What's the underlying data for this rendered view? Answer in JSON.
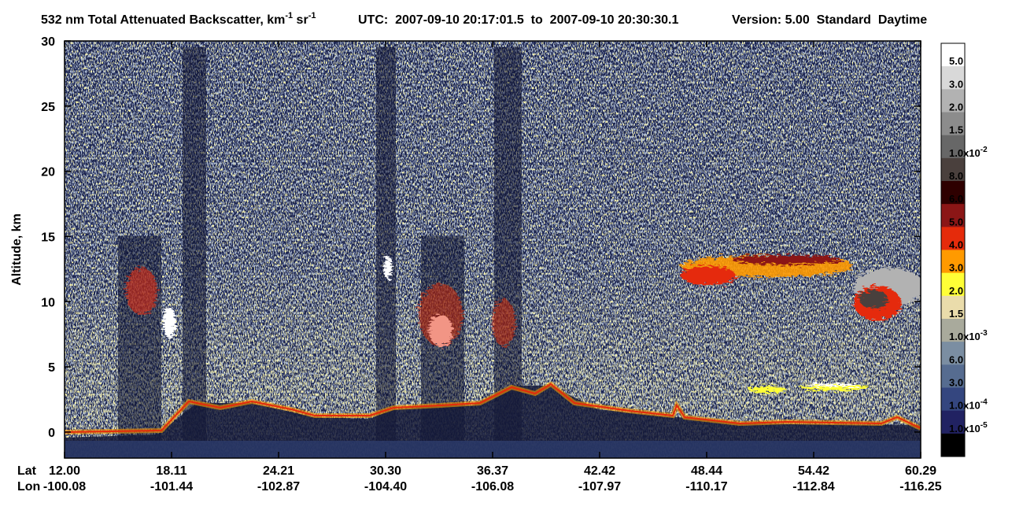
{
  "chart_data": {
    "type": "curtain",
    "title": [
      "532 nm Total Attenuated Backscatter, km",
      "-1",
      " sr",
      "-1"
    ],
    "utc": "UTC:  2007-09-10 20:17:01.5  to  2007-09-10 20:30:30.1",
    "version": "Version: 5.00  Standard  Daytime",
    "ylabel": "Altitude, km",
    "ylim": [
      -2,
      30
    ],
    "yticks": [
      0,
      5,
      10,
      15,
      20,
      25,
      30
    ],
    "x_rows": [
      {
        "name": "Lat",
        "labels": [
          "12.00",
          "18.11",
          "24.21",
          "30.30",
          "36.37",
          "42.42",
          "48.44",
          "54.42",
          "60.29"
        ]
      },
      {
        "name": "Lon",
        "labels": [
          "-100.08",
          "-101.44",
          "-102.87",
          "-104.40",
          "-106.08",
          "-107.97",
          "-110.17",
          "-112.84",
          "-116.25"
        ]
      }
    ],
    "colorbar": {
      "colors": [
        "#ffffff",
        "#d9d9d9",
        "#b2b2b2",
        "#8c8c8c",
        "#676767",
        "#4a403d",
        "#2e0000",
        "#8b1616",
        "#e52b0b",
        "#ff9a00",
        "#ffff36",
        "#eadcab",
        "#a9aa9c",
        "#7b8ea2",
        "#566c90",
        "#34467f",
        "#212262",
        "#000000"
      ],
      "labels": [
        "5.0",
        "3.0",
        "2.0",
        "1.5",
        {
          "text": "1.0x10",
          "exponent": "-2"
        },
        "8.0",
        "6.0",
        "5.0",
        "4.0",
        "3.0",
        "2.0",
        "1.5",
        {
          "text": "1.0x10",
          "exponent": "-3"
        },
        "6.0",
        "3.0",
        {
          "text": "1.0x10",
          "exponent": "-4"
        },
        {
          "text": "1.0x10",
          "exponent": "-5"
        }
      ]
    }
  }
}
